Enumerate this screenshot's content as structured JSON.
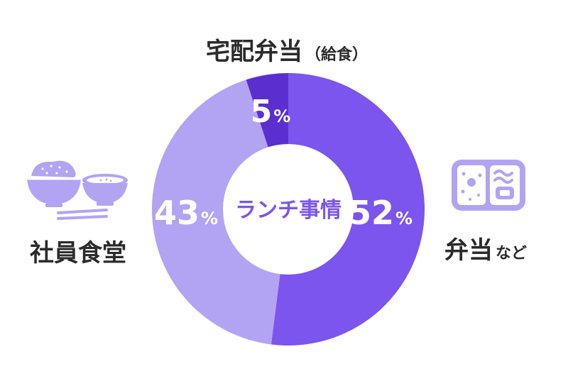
{
  "chart_data": {
    "type": "pie",
    "variant": "donut",
    "center_label": "ランチ事情",
    "slices": [
      {
        "label": "弁当",
        "label_suffix": "など",
        "value": 52,
        "display": "52",
        "unit": "%",
        "color": "#7b55ee",
        "icon": "bento-box-icon"
      },
      {
        "label": "社員食堂",
        "label_suffix": "",
        "value": 43,
        "display": "43",
        "unit": "%",
        "color": "#b3a3f3",
        "icon": "rice-bowl-soup-chopsticks-icon"
      },
      {
        "label": "宅配弁当",
        "label_suffix": "（給食）",
        "value": 5,
        "display": "5",
        "unit": "%",
        "color": "#5b2fcf",
        "icon": ""
      }
    ]
  },
  "colors": {
    "accent_dark": "#5b2fcf",
    "accent": "#7b55ee",
    "accent_light": "#b3a3f3",
    "icon_fill": "#b3a3f3",
    "text": "#2b2b2b"
  }
}
